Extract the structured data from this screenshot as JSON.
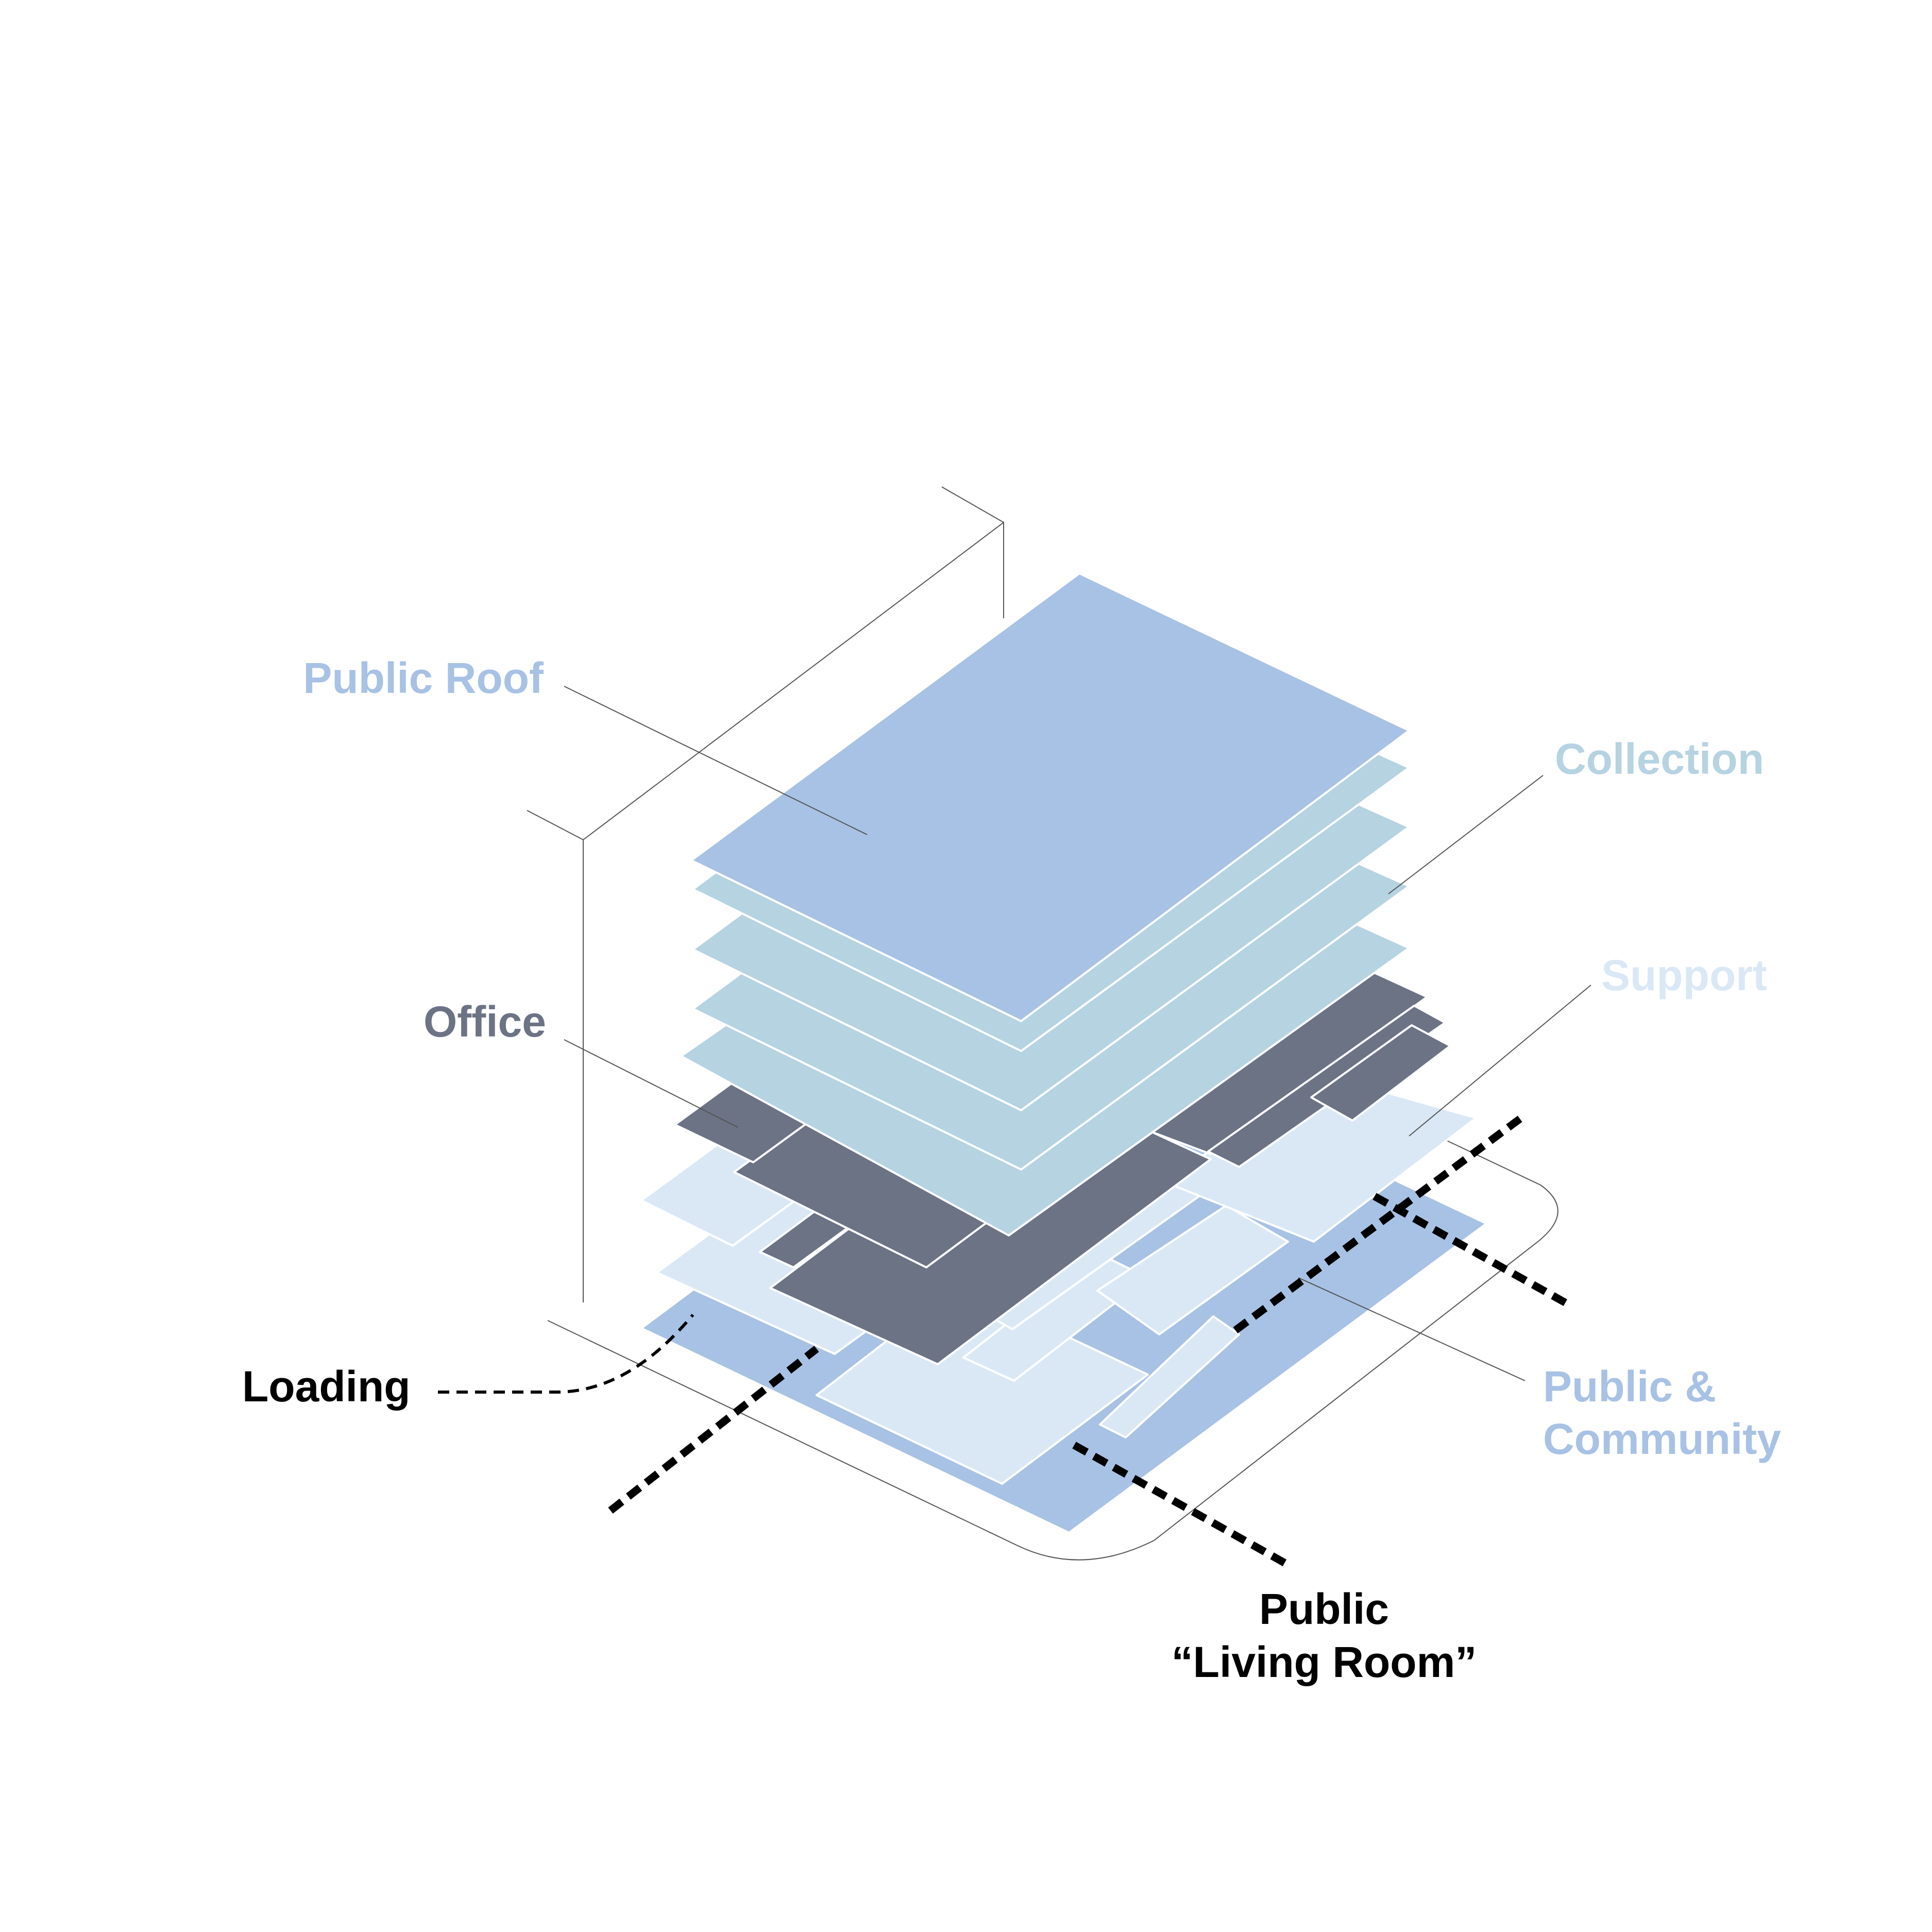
{
  "labels": {
    "public_roof": "Public Roof",
    "collection": "Collection",
    "office": "Office",
    "support": "Support",
    "loading": "Loading",
    "public_community_line1": "Public &",
    "public_community_line2": "Community",
    "living_room_line1": "Public",
    "living_room_line2": "“Living Room”"
  },
  "colors": {
    "public_roof": "#a8c2e5",
    "collection": "#b6d3e2",
    "office": "#6c7385",
    "support": "#dae8f6",
    "public_community": "#a8c2e5",
    "loading": "#000000",
    "living_room": "#000000"
  }
}
